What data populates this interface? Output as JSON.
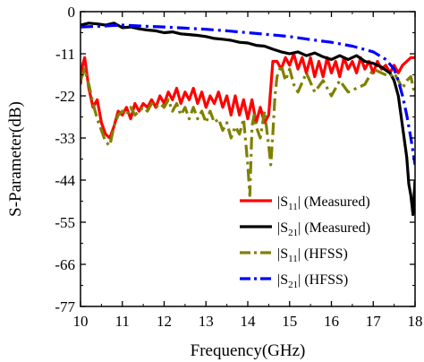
{
  "chart_data": {
    "type": "line",
    "title": "",
    "xlabel": "Frequency(GHz)",
    "ylabel": "S-Parameter(dB)",
    "xlim": [
      10,
      18
    ],
    "ylim": [
      -77,
      0
    ],
    "xticks": [
      10,
      11,
      12,
      13,
      14,
      15,
      16,
      17,
      18
    ],
    "yticks": [
      0,
      -11,
      -22,
      -33,
      -44,
      -55,
      -66,
      -77
    ],
    "grid": false,
    "legend_position": "bottom-right",
    "series": [
      {
        "name_main": "|S",
        "name_sub": "11",
        "name_rest": "| (Measured)",
        "color": "#ff0000",
        "style": "solid",
        "width": 3.2,
        "x": [
          10.0,
          10.05,
          10.1,
          10.15,
          10.2,
          10.3,
          10.4,
          10.5,
          10.6,
          10.7,
          10.8,
          10.9,
          11.0,
          11.1,
          11.2,
          11.3,
          11.4,
          11.5,
          11.6,
          11.7,
          11.8,
          11.9,
          12.0,
          12.1,
          12.2,
          12.3,
          12.4,
          12.5,
          12.6,
          12.7,
          12.8,
          12.9,
          13.0,
          13.1,
          13.2,
          13.3,
          13.4,
          13.5,
          13.6,
          13.7,
          13.8,
          13.9,
          14.0,
          14.1,
          14.2,
          14.3,
          14.4,
          14.5,
          14.6,
          14.7,
          14.8,
          14.9,
          15.0,
          15.1,
          15.2,
          15.3,
          15.4,
          15.5,
          15.6,
          15.7,
          15.8,
          15.9,
          16.0,
          16.1,
          16.2,
          16.3,
          16.4,
          16.5,
          16.6,
          16.7,
          16.8,
          16.9,
          17.0,
          17.1,
          17.2,
          17.3,
          17.4,
          17.5,
          17.6,
          17.7,
          17.8,
          17.9,
          18.0
        ],
        "y": [
          -19,
          -14,
          -12,
          -16,
          -20,
          -25,
          -23,
          -29,
          -32,
          -33,
          -30,
          -26,
          -27,
          -25,
          -28,
          -24,
          -26,
          -24,
          -25,
          -23,
          -25,
          -22,
          -24,
          -21,
          -23,
          -20,
          -24,
          -21,
          -23,
          -20,
          -24,
          -21,
          -25,
          -22,
          -24,
          -21,
          -25,
          -22,
          -27,
          -22,
          -27,
          -23,
          -28,
          -23,
          -29,
          -25,
          -29,
          -27,
          -13,
          -13,
          -15,
          -12,
          -14,
          -11,
          -15,
          -12,
          -16,
          -12,
          -17,
          -13,
          -17,
          -12,
          -16,
          -13,
          -17,
          -12,
          -15,
          -13,
          -16,
          -12,
          -15,
          -13,
          -16,
          -13,
          -15,
          -14,
          -16,
          -14,
          -16,
          -14,
          -13,
          -12,
          -12
        ]
      },
      {
        "name_main": "|S",
        "name_sub": "21",
        "name_rest": "| (Measured)",
        "color": "#000000",
        "style": "solid",
        "width": 3.2,
        "x": [
          10.0,
          10.2,
          10.4,
          10.6,
          10.8,
          11.0,
          11.2,
          11.4,
          11.6,
          11.8,
          12.0,
          12.2,
          12.4,
          12.6,
          12.8,
          13.0,
          13.2,
          13.4,
          13.6,
          13.8,
          14.0,
          14.2,
          14.4,
          14.6,
          14.8,
          15.0,
          15.2,
          15.4,
          15.6,
          15.8,
          16.0,
          16.2,
          16.4,
          16.6,
          16.8,
          17.0,
          17.2,
          17.4,
          17.5,
          17.6,
          17.7,
          17.8,
          17.85,
          17.9,
          17.95,
          18.0
        ],
        "y": [
          -3.5,
          -3.0,
          -3.2,
          -3.5,
          -3.0,
          -4.2,
          -4.0,
          -4.5,
          -4.8,
          -5.0,
          -5.5,
          -5.3,
          -5.8,
          -6.0,
          -6.2,
          -6.5,
          -7.0,
          -7.2,
          -7.5,
          -8.0,
          -8.2,
          -8.8,
          -9.0,
          -9.8,
          -10.5,
          -11.0,
          -10.5,
          -11.5,
          -10.8,
          -11.8,
          -12.5,
          -11.5,
          -12.5,
          -11.5,
          -13.0,
          -13.5,
          -14.5,
          -16.0,
          -18.0,
          -22.0,
          -30.0,
          -38.0,
          -45.0,
          -48.0,
          -53.0,
          -44.0
        ]
      },
      {
        "name_main": "|S",
        "name_sub": "11",
        "name_rest": "| (HFSS)",
        "color": "#808000",
        "style": "dashdot",
        "width": 3.2,
        "x": [
          10.0,
          10.1,
          10.2,
          10.3,
          10.4,
          10.5,
          10.6,
          10.7,
          10.8,
          10.9,
          11.0,
          11.1,
          11.2,
          11.3,
          11.4,
          11.5,
          11.6,
          11.7,
          11.8,
          11.9,
          12.0,
          12.1,
          12.2,
          12.3,
          12.4,
          12.5,
          12.6,
          12.7,
          12.8,
          12.9,
          13.0,
          13.1,
          13.2,
          13.3,
          13.4,
          13.5,
          13.6,
          13.7,
          13.8,
          13.9,
          14.0,
          14.05,
          14.1,
          14.15,
          14.2,
          14.3,
          14.4,
          14.5,
          14.55,
          14.6,
          14.65,
          14.7,
          14.8,
          14.9,
          15.0,
          15.1,
          15.2,
          15.4,
          15.6,
          15.8,
          16.0,
          16.2,
          16.4,
          16.6,
          16.8,
          17.0,
          17.2,
          17.4,
          17.5,
          17.6,
          17.7,
          17.8,
          17.9,
          18.0
        ],
        "y": [
          -18,
          -15,
          -19,
          -24,
          -28,
          -31,
          -34,
          -35,
          -30,
          -27,
          -26,
          -27,
          -25,
          -27,
          -26,
          -25,
          -26,
          -24,
          -25,
          -24,
          -25,
          -23,
          -26,
          -24,
          -27,
          -25,
          -28,
          -25,
          -28,
          -26,
          -29,
          -26,
          -29,
          -28,
          -31,
          -29,
          -33,
          -30,
          -32,
          -28,
          -40,
          -48,
          -30,
          -27,
          -30,
          -33,
          -26,
          -35,
          -40,
          -32,
          -22,
          -17,
          -14,
          -18,
          -15,
          -19,
          -21,
          -16,
          -21,
          -18,
          -22,
          -18,
          -21,
          -20,
          -19,
          -15,
          -16,
          -17,
          -16,
          -18,
          -20,
          -18,
          -17,
          -22
        ]
      },
      {
        "name_main": "|S",
        "name_sub": "21",
        "name_rest": "| (HFSS)",
        "color": "#0000ff",
        "style": "dashdot",
        "width": 3.2,
        "x": [
          10.0,
          10.5,
          11.0,
          11.5,
          12.0,
          12.5,
          13.0,
          13.5,
          14.0,
          14.5,
          15.0,
          15.5,
          16.0,
          16.5,
          17.0,
          17.3,
          17.5,
          17.6,
          17.7,
          17.8,
          17.9,
          18.0
        ],
        "y": [
          -4.0,
          -3.8,
          -3.5,
          -3.8,
          -4.0,
          -4.3,
          -4.6,
          -5.0,
          -5.5,
          -6.0,
          -6.5,
          -7.3,
          -8.0,
          -9.0,
          -10.5,
          -12.5,
          -15.0,
          -18.0,
          -22.0,
          -27.0,
          -33.0,
          -40.0
        ]
      }
    ]
  }
}
